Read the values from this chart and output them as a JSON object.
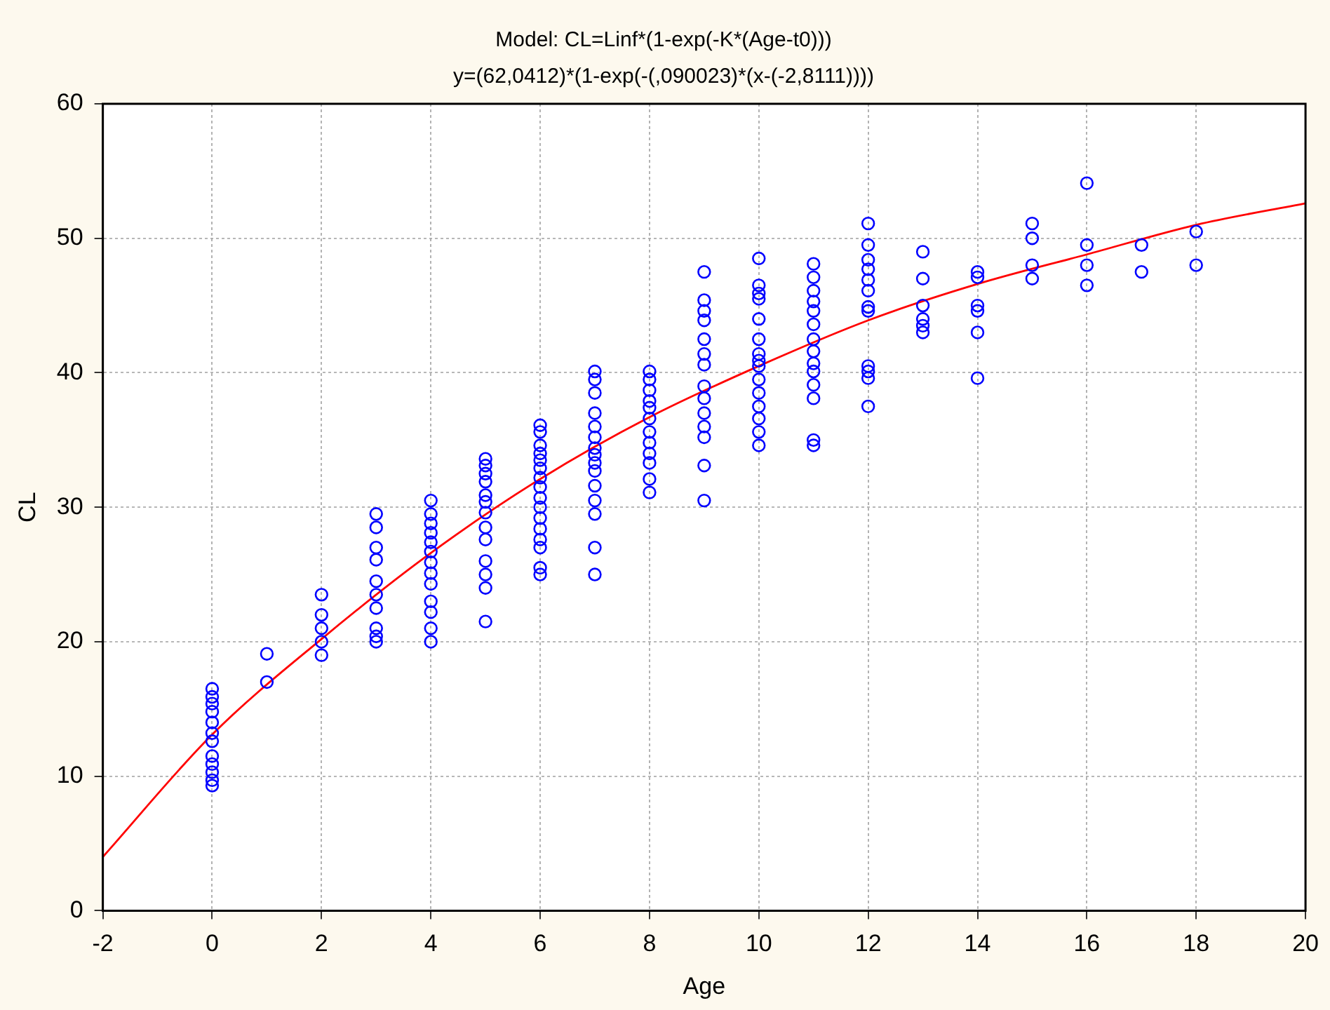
{
  "chart_data": {
    "type": "scatter",
    "title": "Model: CL=Linf*(1-exp(-K*(Age-t0)))",
    "subtitle": "y=(62,0412)*(1-exp(-(,090023)*(x-(-2,8111))))",
    "xlabel": "Age",
    "ylabel": "CL",
    "xlim": [
      -2,
      20
    ],
    "xticks": [
      -2,
      0,
      2,
      4,
      6,
      8,
      10,
      12,
      14,
      16,
      18,
      20
    ],
    "ylim": [
      0,
      60
    ],
    "yticks": [
      0,
      10,
      20,
      30,
      40,
      50,
      60
    ],
    "grid": true,
    "legend": false,
    "marker": "circle",
    "series": [
      {
        "type": "scatter",
        "color": "#0000ff",
        "x": [
          0,
          0,
          0,
          0,
          0,
          0,
          0,
          0,
          0,
          0,
          0,
          0,
          1,
          1,
          2,
          2,
          2,
          2,
          2,
          3,
          3,
          3,
          3,
          3,
          3,
          3,
          3,
          3,
          3,
          4,
          4,
          4,
          4,
          4,
          4,
          4,
          4,
          4,
          4,
          4,
          4,
          4,
          5,
          5,
          5,
          5,
          5,
          5,
          5,
          5,
          5,
          5,
          5,
          5,
          5,
          6,
          6,
          6,
          6,
          6,
          6,
          6,
          6,
          6,
          6,
          6,
          6,
          6,
          6,
          6,
          6,
          7,
          7,
          7,
          7,
          7,
          7,
          7,
          7,
          7,
          7,
          7,
          7,
          7,
          7,
          7,
          8,
          8,
          8,
          8,
          8,
          8,
          8,
          8,
          8,
          8,
          8,
          8,
          9,
          9,
          9,
          9,
          9,
          9,
          9,
          9,
          9,
          9,
          9,
          9,
          9,
          9,
          10,
          10,
          10,
          10,
          10,
          10,
          10,
          10,
          10,
          10,
          10,
          10,
          10,
          10,
          10,
          11,
          11,
          11,
          11,
          11,
          11,
          11,
          11,
          11,
          11,
          11,
          11,
          11,
          11,
          12,
          12,
          12,
          12,
          12,
          12,
          12,
          12,
          12,
          12,
          12,
          12,
          13,
          13,
          13,
          13,
          13,
          13,
          14,
          14,
          14,
          14,
          14,
          14,
          15,
          15,
          15,
          15,
          16,
          16,
          16,
          16,
          17,
          17,
          18,
          18
        ],
        "values": [
          16.5,
          15.9,
          15.4,
          14.8,
          14.0,
          13.2,
          12.6,
          11.5,
          10.9,
          10.3,
          9.7,
          9.3,
          19.1,
          17.0,
          23.5,
          22.0,
          21.0,
          20.0,
          19.0,
          29.5,
          28.5,
          27.0,
          26.1,
          24.5,
          23.5,
          22.5,
          21.0,
          20.4,
          20.0,
          30.5,
          29.5,
          28.8,
          28.1,
          27.4,
          26.7,
          25.9,
          25.1,
          24.3,
          23.0,
          22.2,
          21.0,
          20.0,
          33.6,
          33.1,
          32.5,
          31.9,
          30.9,
          30.4,
          29.6,
          28.5,
          27.6,
          26.0,
          25.0,
          24.0,
          21.5,
          36.1,
          35.6,
          34.6,
          34.0,
          33.5,
          32.9,
          32.2,
          31.5,
          30.7,
          30.0,
          29.2,
          28.4,
          27.6,
          27.0,
          25.5,
          25.0,
          40.1,
          39.5,
          38.5,
          37.0,
          36.0,
          35.2,
          34.4,
          33.9,
          33.3,
          32.7,
          31.6,
          30.5,
          29.5,
          27.0,
          25.0,
          40.1,
          39.5,
          38.7,
          37.9,
          37.4,
          36.6,
          35.6,
          34.8,
          34.0,
          33.3,
          32.1,
          31.1,
          47.5,
          45.4,
          44.6,
          43.9,
          42.5,
          41.4,
          40.6,
          39.0,
          38.1,
          37.0,
          36.0,
          35.2,
          33.1,
          30.5,
          48.5,
          46.5,
          45.9,
          45.5,
          44.0,
          42.5,
          41.4,
          40.9,
          40.5,
          39.5,
          38.5,
          37.5,
          36.6,
          35.6,
          34.6,
          48.1,
          47.1,
          46.1,
          45.3,
          44.6,
          43.6,
          42.5,
          41.6,
          40.7,
          40.1,
          39.1,
          38.1,
          35.0,
          34.6,
          51.1,
          49.5,
          48.4,
          47.7,
          46.9,
          46.1,
          44.9,
          44.6,
          40.5,
          40.1,
          39.6,
          37.5,
          49.0,
          47.0,
          45.0,
          44.0,
          43.5,
          43.0,
          47.5,
          47.1,
          45.0,
          44.6,
          43.0,
          39.6,
          51.1,
          50.0,
          48.0,
          47.0,
          54.1,
          49.5,
          48.0,
          46.5,
          49.5,
          47.5,
          50.5,
          48.0
        ]
      },
      {
        "type": "line",
        "color": "#ff0000",
        "marker": "none",
        "x": [
          -2,
          0,
          2,
          4,
          6,
          8,
          10,
          12,
          14,
          16,
          18,
          20
        ],
        "values": [
          4.0,
          13.1,
          20.2,
          26.6,
          32.1,
          36.7,
          40.5,
          43.9,
          46.6,
          48.8,
          51.0,
          52.6
        ]
      }
    ]
  }
}
